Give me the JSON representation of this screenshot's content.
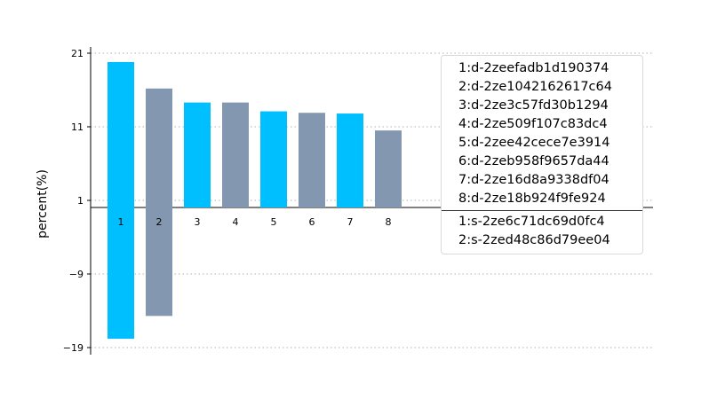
{
  "chart_data": {
    "type": "bar",
    "ylabel": "percent(%)",
    "xlabel": "",
    "title": "",
    "ylim": [
      -20,
      21
    ],
    "yticks": [
      21,
      11,
      1,
      -9,
      -19
    ],
    "grid": "horizontal dotted",
    "legend_position": "top-right",
    "colors": {
      "series_a": "#00bfff",
      "series_b": "#8497b0"
    },
    "positive_series": {
      "categories": [
        "1",
        "2",
        "3",
        "4",
        "5",
        "6",
        "7",
        "8"
      ],
      "values": [
        19.8,
        16.2,
        14.3,
        14.3,
        13.1,
        12.9,
        12.8,
        10.5
      ]
    },
    "negative_series": {
      "categories": [
        "1",
        "2"
      ],
      "values": [
        -17.8,
        -14.7
      ]
    },
    "legend": {
      "d_items": [
        "1:d-2zeefadb1d190374",
        "2:d-2ze1042162617c64",
        "3:d-2ze3c57fd30b1294",
        "4:d-2ze509f107c83dc4",
        "5:d-2zee42cece7e3914",
        "6:d-2zeb958f9657da44",
        "7:d-2ze16d8a9338df04",
        "8:d-2ze18b924f9fe924"
      ],
      "s_items": [
        "1:s-2ze6c71dc69d0fc4",
        "2:s-2zed48c86d79ee04"
      ]
    }
  }
}
